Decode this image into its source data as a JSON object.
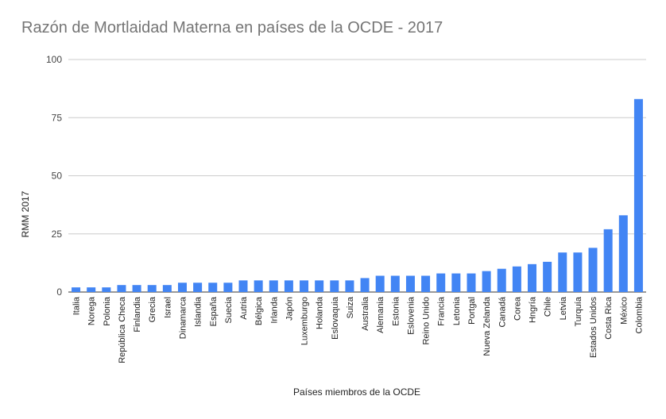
{
  "chart_data": {
    "type": "bar",
    "title": "Razón de Mortlaidad Materna en países de la OCDE - 2017",
    "xlabel": "Países miembros de la OCDE",
    "ylabel": "RMM 2017",
    "ylim": [
      0,
      100
    ],
    "yticks": [
      0,
      25,
      50,
      75,
      100
    ],
    "grid": true,
    "legend": "none",
    "bar_color": "#4285f4",
    "categories": [
      "Italia",
      "Norega",
      "Polonia",
      "República Checa",
      "Finlandia",
      "Grecia",
      "Israel",
      "Dinamarca",
      "Islandia",
      "España",
      "Suecia",
      "Autria",
      "Bélgica",
      "Irlanda",
      "Japón",
      "Luxemburgo",
      "Holanda",
      "Eslovaquia",
      "Suiza",
      "Australia",
      "Alemania",
      "Estonia",
      "Eslovenia",
      "Reino Unido",
      "Francia",
      "Letonia",
      "Portgal",
      "Nueva Zelanda",
      "Canadá",
      "Corea",
      "Hngría",
      "Chile",
      "Letvia",
      "Turquía",
      "Estados Unidos",
      "Costa Rica",
      "México",
      "Colombia"
    ],
    "values": [
      2,
      2,
      2,
      3,
      3,
      3,
      3,
      4,
      4,
      4,
      4,
      5,
      5,
      5,
      5,
      5,
      5,
      5,
      5,
      6,
      7,
      7,
      7,
      7,
      8,
      8,
      8,
      9,
      10,
      11,
      12,
      13,
      17,
      17,
      19,
      27,
      33,
      83
    ]
  }
}
